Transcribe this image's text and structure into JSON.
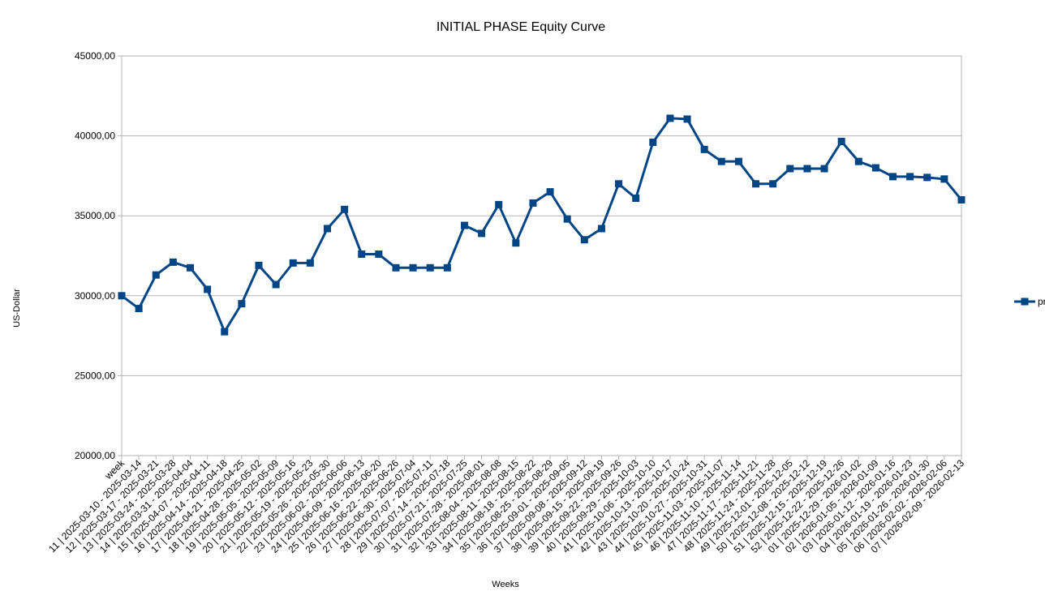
{
  "chart_data": {
    "type": "line",
    "title": "INITIAL PHASE Equity Curve",
    "x_label": "Weeks",
    "y_label": "US-Dollar",
    "categories": [
      "week",
      "11 | 2025-03-10 - 2025-03-14",
      "12 | 2025-03-17 - 2025-03-21",
      "13 | 2025-03-24 - 2025-03-28",
      "14 | 2025-03-31 - 2025-04-04",
      "15 | 2025-04-07 - 2025-04-11",
      "16 | 2025-04-14 - 2025-04-18",
      "17 | 2025-04-21 - 2025-04-25",
      "18 | 2025-04-28 - 2025-05-02",
      "19 | 2025-05-05 - 2025-05-09",
      "20 | 2025-05-12 - 2025-05-16",
      "21 | 2025-05-19 - 2025-05-23",
      "22 | 2025-05-26 - 2025-05-30",
      "23 | 2025-06-02 - 2025-06-06",
      "24 | 2025-06-09 - 2025-06-13",
      "25 | 2025-06-16 - 2025-06-20",
      "26 | 2025-06-22 - 2025-06-26",
      "27 | 2025-06-30 - 2025-07-04",
      "28 | 2025-07-07 - 2025-07-11",
      "29 | 2025-07-14 - 2025-07-18",
      "30 | 2025-07-21 - 2025-07-25",
      "31 | 2025-07-28 - 2025-08-01",
      "32 | 2025-08-04 - 2025-08-08",
      "33 | 2025-08-11 - 2025-08-15",
      "34 | 2025-08-18 - 2025-08-22",
      "35 | 2025-08-25 - 2025-08-29",
      "36 | 2025-09-01 - 2025-09-05",
      "37 | 2025-09-08 - 2025-09-12",
      "38 | 2025-09-15 - 2025-09-19",
      "39 | 2025-09-22 - 2025-09-26",
      "40 | 2025-09-29 - 2025-10-03",
      "41 | 2025-10-06 - 2025-10-10",
      "42 | 2025-10-13 - 2025-10-17",
      "43 | 2025-10-20 - 2025-10-24",
      "44 | 2025-10-27 - 2025-10-31",
      "45 | 2025-11-03 - 2025-11-07",
      "46 | 2025-11-10 - 2025-11-14",
      "47 | 2025-11-17 - 2025-11-21",
      "48 | 2025-11-24 - 2025-11-28",
      "49 | 2025-12-01 - 2025-12-05",
      "50 | 2025-12-08 - 2025-12-12",
      "51 | 2025-12-15 - 2025-12-19",
      "52 | 2025-12-22 - 2025-12-26",
      "01 | 2025-12-29 - 2026-01-02",
      "02 | 2026-01-05 - 2026-01-09",
      "03 | 2026-01-12 - 2026-01-16",
      "04 | 2026-01-19 - 2026-01-23",
      "05 | 2026-01-26 - 2026-01-30",
      "06 | 2026-02-02 - 2026-02-06",
      "07 | 2026-02-09 - 2026-02-13"
    ],
    "series": [
      {
        "name": "profit",
        "color": "#004586",
        "values": [
          30000,
          29200,
          31300,
          32100,
          31750,
          30400,
          27750,
          29500,
          31900,
          30700,
          32050,
          32050,
          34200,
          35400,
          32600,
          32600,
          31750,
          31750,
          31750,
          31750,
          34400,
          33900,
          35700,
          33300,
          35800,
          36500,
          34800,
          33500,
          34200,
          37000,
          36100,
          39600,
          41100,
          41050,
          39150,
          38400,
          38400,
          37000,
          37000,
          37950,
          37950,
          37950,
          39650,
          38400,
          38000,
          37450,
          37450,
          37400,
          37300,
          36000
        ]
      }
    ],
    "ylim": [
      20000,
      45000
    ],
    "yticks": [
      {
        "value": 20000,
        "label": "20000,00"
      },
      {
        "value": 25000,
        "label": "25000,00"
      },
      {
        "value": 30000,
        "label": "30000,00"
      },
      {
        "value": 35000,
        "label": "35000,00"
      },
      {
        "value": 40000,
        "label": "40000,00"
      },
      {
        "value": 45000,
        "label": "45000,00"
      }
    ],
    "grid": true,
    "legend": "right"
  }
}
